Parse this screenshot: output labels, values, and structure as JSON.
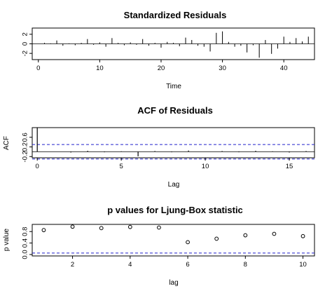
{
  "chart_data": [
    {
      "type": "spike",
      "title": "Standardized Residuals",
      "xlabel": "Time",
      "ylabel": "",
      "xlim": [
        -1,
        45
      ],
      "ylim": [
        -3.3,
        3.3
      ],
      "xticks": [
        0,
        10,
        20,
        30,
        40
      ],
      "yticks": [
        -2,
        0,
        2
      ],
      "x": [
        1,
        2,
        3,
        4,
        5,
        6,
        7,
        8,
        9,
        10,
        11,
        12,
        13,
        14,
        15,
        16,
        17,
        18,
        19,
        20,
        21,
        22,
        23,
        24,
        25,
        26,
        27,
        28,
        29,
        30,
        31,
        32,
        33,
        34,
        35,
        36,
        37,
        38,
        39,
        40,
        41,
        42,
        43,
        44
      ],
      "values": [
        0.2,
        0.1,
        0.7,
        -0.4,
        0.1,
        -0.3,
        0.2,
        1.0,
        -0.2,
        0.3,
        -0.6,
        1.2,
        0.2,
        -0.3,
        0.3,
        -0.2,
        1.0,
        -0.4,
        0.2,
        -0.8,
        0.4,
        0.2,
        -0.5,
        1.3,
        0.8,
        -0.4,
        -0.6,
        -1.6,
        2.3,
        2.6,
        0.4,
        -0.6,
        -0.4,
        -1.8,
        -0.3,
        -2.9,
        0.8,
        -2.1,
        -1.0,
        1.5,
        0.4,
        1.2,
        0.5,
        1.5
      ]
    },
    {
      "type": "acf",
      "title": "ACF of Residuals",
      "xlabel": "Lag",
      "ylabel": "ACF",
      "xlim": [
        -0.3,
        16.5
      ],
      "ylim": [
        -0.25,
        1.0
      ],
      "xticks": [
        0,
        5,
        10,
        15
      ],
      "yticks": [
        -0.2,
        0.2,
        0.6
      ],
      "lags": [
        0,
        1,
        2,
        3,
        4,
        5,
        6,
        7,
        8,
        9,
        10,
        11,
        12,
        13,
        14,
        15,
        16
      ],
      "values": [
        1.0,
        0.01,
        -0.03,
        0.04,
        -0.02,
        0.02,
        -0.19,
        0.03,
        -0.02,
        0.05,
        0.01,
        0.03,
        -0.02,
        0.04,
        0.02,
        -0.03,
        0.03
      ],
      "confidence_bound": 0.3
    },
    {
      "type": "scatter",
      "title": "p values for Ljung-Box statistic",
      "xlabel": "lag",
      "ylabel": "p value",
      "xlim": [
        0.6,
        10.4
      ],
      "ylim": [
        -0.05,
        1.05
      ],
      "xticks": [
        2,
        4,
        6,
        8,
        10
      ],
      "yticks": [
        0.0,
        0.4,
        0.8
      ],
      "x": [
        1,
        2,
        3,
        4,
        5,
        6,
        7,
        8,
        9,
        10
      ],
      "values": [
        0.85,
        0.97,
        0.92,
        0.96,
        0.94,
        0.43,
        0.55,
        0.67,
        0.72,
        0.64
      ],
      "significance_level": 0.05
    }
  ],
  "colors": {
    "reference_line": "#2222cc",
    "ink": "#000000"
  }
}
